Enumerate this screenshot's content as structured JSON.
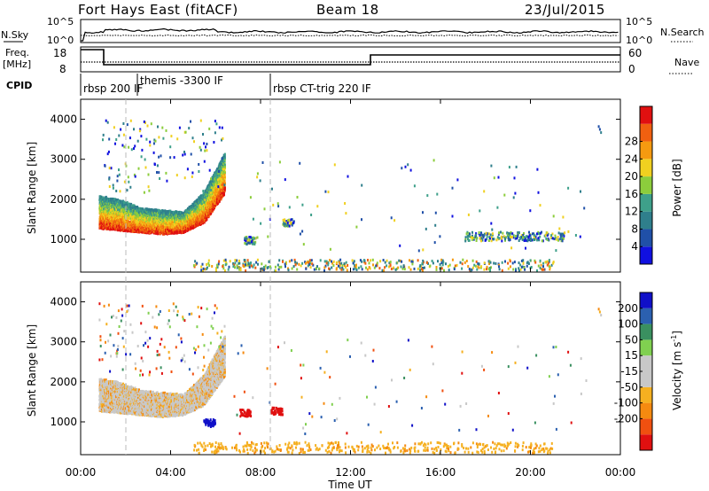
{
  "header": {
    "station": "Fort Hays East (fitACF)",
    "beam": "Beam 18",
    "date": "23/Jul/2015"
  },
  "strip": {
    "nsky_label": "N.Sky",
    "nsearch_label": "N.Search",
    "left_ticks": [
      "10^5",
      "10^0"
    ],
    "right_ticks": [
      "10^5",
      "10^0"
    ],
    "freq_label": "Freq.",
    "freq_unit": "[MHz]",
    "freq_ticks": [
      "18",
      "8"
    ],
    "nave_label": "Nave",
    "nave_ticks": [
      "60",
      "0"
    ],
    "cpid_label": "CPID",
    "cpid_segments": [
      "rbsp 200 IF",
      "themis -3300 IF",
      "rbsp CT-trig 220 IF"
    ]
  },
  "x_axis": {
    "title": "Time UT",
    "ticks": [
      "00:00",
      "04:00",
      "08:00",
      "12:00",
      "16:00",
      "20:00",
      "00:00"
    ]
  },
  "colors": {
    "power": [
      "#1010e0",
      "#2050a8",
      "#2f7f8c",
      "#3ea08a",
      "#8ccd3c",
      "#f0d020",
      "#f59a10",
      "#f06010",
      "#e01010"
    ],
    "velocity": [
      "#e01010",
      "#f05010",
      "#f58a10",
      "#f5b020",
      "#c8c8c8",
      "#c8c8c8",
      "#80d050",
      "#3a9060",
      "#2b60b0",
      "#1010c8"
    ]
  },
  "chart_data": [
    {
      "type": "heatmap",
      "title": "",
      "ylabel": "Slant Range [km]",
      "xlabel": "",
      "ylim": [
        180,
        4500
      ],
      "xlim_hours": [
        0,
        24
      ],
      "yticks": [
        "1000",
        "2000",
        "3000",
        "4000"
      ],
      "colorbar": {
        "label": "Power [dB]",
        "range": [
          0,
          32
        ],
        "tick_labels": [
          "4",
          "8",
          "12",
          "16",
          "20",
          "24",
          "28"
        ]
      },
      "features": [
        {
          "name": "band",
          "t_start": 0.8,
          "t_end": 6.4,
          "range_low": [
            1300,
            1250,
            1200,
            1150,
            1200,
            1450,
            2200
          ],
          "range_high": [
            2100,
            2000,
            1800,
            1750,
            1700,
            2200,
            3200
          ]
        },
        {
          "name": "patch",
          "t": 7.5,
          "range": 1000
        },
        {
          "name": "patch",
          "t": 9.2,
          "range": 1450
        },
        {
          "name": "cluster",
          "t_start": 17.0,
          "t_end": 21.5,
          "range": 1100
        },
        {
          "name": "near-range echoes",
          "t_start": 5.0,
          "t_end": 21.0,
          "range": 300
        }
      ]
    },
    {
      "type": "heatmap",
      "title": "",
      "ylabel": "Slant Range [km]",
      "xlabel": "Time UT",
      "ylim": [
        180,
        4500
      ],
      "xlim_hours": [
        0,
        24
      ],
      "yticks": [
        "1000",
        "2000",
        "3000",
        "4000"
      ],
      "colorbar": {
        "label": "Velocity [m s^-1]",
        "range": [
          -250,
          250
        ],
        "tick_labels": [
          "200",
          "100",
          "50",
          "15",
          "-15",
          "-50",
          "-100",
          "-200"
        ]
      },
      "features": [
        {
          "name": "band",
          "t_start": 0.8,
          "t_end": 6.4,
          "range_low": [
            1300,
            1250,
            1200,
            1150,
            1200,
            1450,
            2200
          ],
          "range_high": [
            2100,
            2000,
            1800,
            1750,
            1700,
            2200,
            3200
          ]
        },
        {
          "name": "patch",
          "t": 5.7,
          "range": 1000
        },
        {
          "name": "patch",
          "t": 7.3,
          "range": 1250
        },
        {
          "name": "patch",
          "t": 8.7,
          "range": 1300
        },
        {
          "name": "near-range echoes",
          "t_start": 5.0,
          "t_end": 21.0,
          "range": 300
        }
      ]
    }
  ]
}
